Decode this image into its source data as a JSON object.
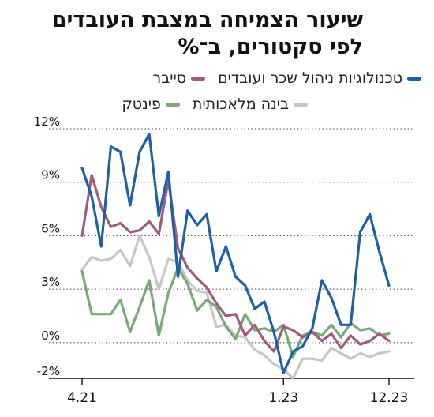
{
  "chart_data": {
    "type": "line",
    "title_lines": [
      "שיעור הצמיחה במצבת העובדים",
      "לפי סקטורים, ב־%"
    ],
    "xlabel": "",
    "ylabel": "",
    "x_tick_labels": [
      "4.21",
      "1.23",
      "12.23"
    ],
    "y_ticks": [
      {
        "value": -2,
        "label": "-2%"
      },
      {
        "value": 0,
        "label": "0%"
      },
      {
        "value": 3,
        "label": "3%"
      },
      {
        "value": 6,
        "label": "6%"
      },
      {
        "value": 9,
        "label": "9%"
      },
      {
        "value": 12,
        "label": "12%"
      }
    ],
    "ylim": [
      -2,
      12
    ],
    "grid": "horizontal-dotted",
    "legend_position": "top",
    "x": [
      "4.21",
      "5.21",
      "6.21",
      "7.21",
      "8.21",
      "9.21",
      "10.21",
      "11.21",
      "12.21",
      "1.22",
      "2.22",
      "3.22",
      "4.22",
      "5.22",
      "6.22",
      "7.22",
      "8.22",
      "9.22",
      "10.22",
      "11.22",
      "12.22",
      "1.23",
      "2.23",
      "3.23",
      "4.23",
      "5.23",
      "6.23",
      "7.23",
      "8.23",
      "9.23",
      "10.23",
      "11.23",
      "12.23"
    ],
    "series": [
      {
        "name": "טכנולוגיות ניהול שכר ועובדים",
        "color": "#1f5fa6",
        "values": [
          9.8,
          8.2,
          5.4,
          11.0,
          10.7,
          7.7,
          10.7,
          11.7,
          7.1,
          9.6,
          3.7,
          7.4,
          6.6,
          7.2,
          4.0,
          5.4,
          3.7,
          3.2,
          1.9,
          2.3,
          0.6,
          -1.7,
          -0.5,
          -0.2,
          0.8,
          3.5,
          2.5,
          1.0,
          1.0,
          6.2,
          7.2,
          5.1,
          3.2
        ]
      },
      {
        "name": "סייבר",
        "color": "#a05c7b",
        "values": [
          6.0,
          9.4,
          7.6,
          6.5,
          6.7,
          6.2,
          6.3,
          6.8,
          6.1,
          9.1,
          5.3,
          4.2,
          3.6,
          3.1,
          2.2,
          1.5,
          1.6,
          0.4,
          1.0,
          0.1,
          -0.5,
          0.9,
          0.7,
          0.3,
          0.6,
          0.1,
          0.5,
          -0.3,
          0.4,
          -0.1,
          0.1,
          0.5,
          0.1
        ]
      },
      {
        "name": "פינטק",
        "color": "#79aa76",
        "values": [
          4.0,
          1.6,
          1.6,
          1.6,
          2.4,
          0.6,
          2.0,
          3.5,
          0.4,
          2.8,
          4.2,
          3.3,
          1.8,
          2.4,
          2.0,
          0.9,
          0.2,
          1.6,
          0.7,
          0.8,
          0.6,
          1.0,
          -0.8,
          0.4,
          0.6,
          0.4,
          1.0,
          0.3,
          1.1,
          0.7,
          0.8,
          0.4,
          0.5
        ]
      },
      {
        "name": "בינה מלאכותית",
        "color": "#c6c6c6",
        "values": [
          4.1,
          4.8,
          4.6,
          4.7,
          5.2,
          4.3,
          6.0,
          4.8,
          3.0,
          4.7,
          4.5,
          3.5,
          2.9,
          2.8,
          0.9,
          1.0,
          0.4,
          0.3,
          -0.4,
          -0.7,
          -1.2,
          -1.5,
          -2.0,
          -0.9,
          -0.9,
          -1.0,
          -0.3,
          -0.6,
          -0.9,
          -0.6,
          -0.8,
          -0.6,
          -0.5
        ]
      }
    ]
  }
}
